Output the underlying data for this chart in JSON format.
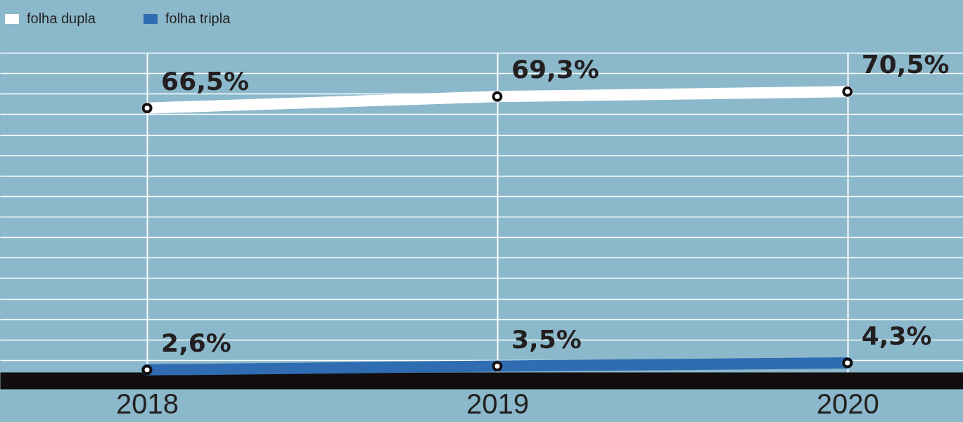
{
  "chart_data": {
    "type": "line",
    "categories": [
      "2018",
      "2019",
      "2020"
    ],
    "series": [
      {
        "name": "folha dupla",
        "color": "#ffffff",
        "values": [
          66.5,
          69.3,
          70.5
        ],
        "value_labels": [
          "66,5%",
          "69,3%",
          "70,5%"
        ]
      },
      {
        "name": "folha tripla",
        "color": "#2f6cb1",
        "values": [
          2.6,
          3.5,
          4.3
        ],
        "value_labels": [
          "2,6%",
          "3,5%",
          "4,3%"
        ]
      }
    ],
    "grid": true,
    "legend": "top left",
    "marker": "circle",
    "line_style": "solid",
    "tick_labels": "x"
  }
}
